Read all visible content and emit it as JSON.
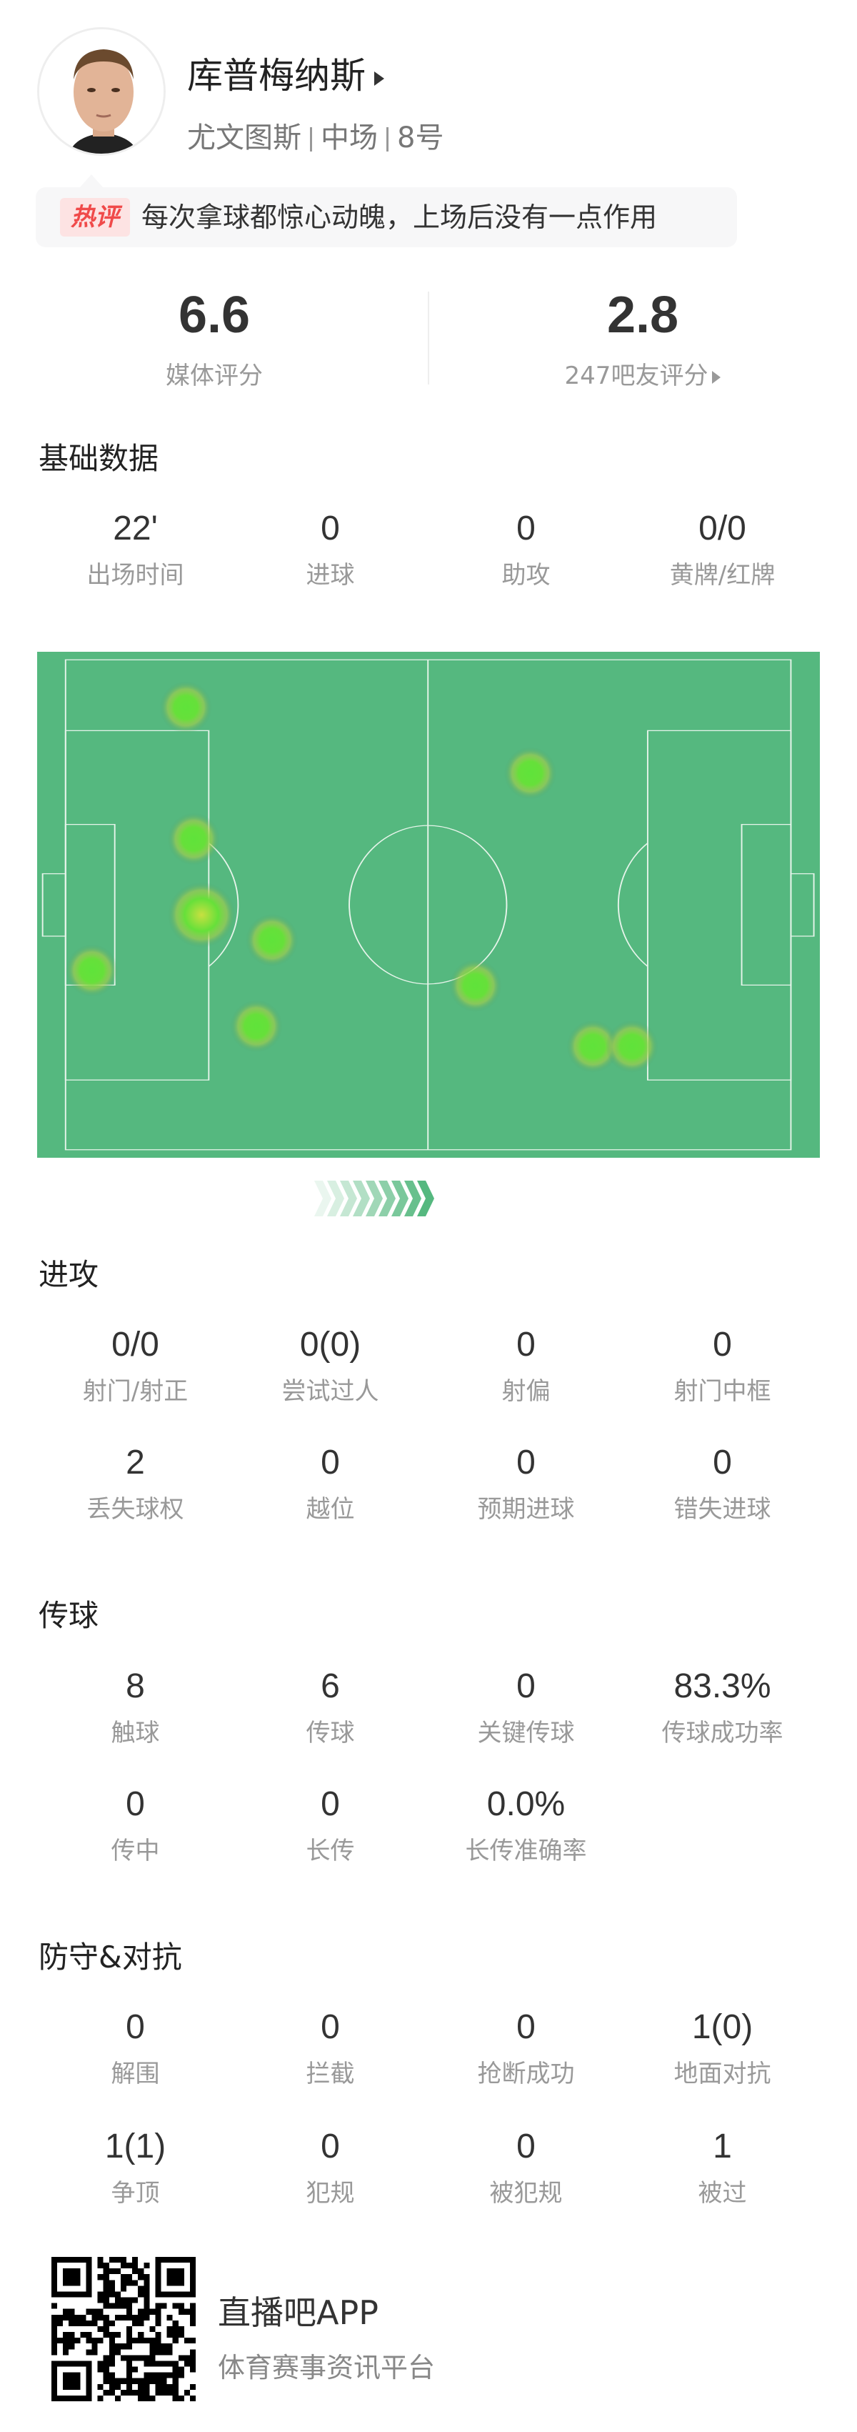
{
  "player": {
    "name": "库普梅纳斯",
    "team": "尤文图斯",
    "position": "中场",
    "number": "8号"
  },
  "hot_comment": {
    "badge": "热评",
    "text": "每次拿球都惊心动魄，上场后没有一点作用"
  },
  "ratings": {
    "media": {
      "value": "6.6",
      "label": "媒体评分"
    },
    "fans": {
      "value": "2.8",
      "label": "247吧友评分"
    }
  },
  "sections": {
    "basic": {
      "title": "基础数据",
      "stats": [
        {
          "value": "22'",
          "label": "出场时间"
        },
        {
          "value": "0",
          "label": "进球"
        },
        {
          "value": "0",
          "label": "助攻"
        },
        {
          "value": "0/0",
          "label": "黄牌/红牌"
        }
      ]
    },
    "attack": {
      "title": "进攻",
      "stats": [
        {
          "value": "0/0",
          "label": "射门/射正"
        },
        {
          "value": "0(0)",
          "label": "尝试过人"
        },
        {
          "value": "0",
          "label": "射偏"
        },
        {
          "value": "0",
          "label": "射门中框"
        },
        {
          "value": "2",
          "label": "丢失球权"
        },
        {
          "value": "0",
          "label": "越位"
        },
        {
          "value": "0",
          "label": "预期进球"
        },
        {
          "value": "0",
          "label": "错失进球"
        }
      ]
    },
    "passing": {
      "title": "传球",
      "stats": [
        {
          "value": "8",
          "label": "触球"
        },
        {
          "value": "6",
          "label": "传球"
        },
        {
          "value": "0",
          "label": "关键传球"
        },
        {
          "value": "83.3%",
          "label": "传球成功率"
        },
        {
          "value": "0",
          "label": "传中"
        },
        {
          "value": "0",
          "label": "长传"
        },
        {
          "value": "0.0%",
          "label": "长传准确率"
        }
      ]
    },
    "defense": {
      "title": "防守&对抗",
      "stats": [
        {
          "value": "0",
          "label": "解围"
        },
        {
          "value": "0",
          "label": "拦截"
        },
        {
          "value": "0",
          "label": "抢断成功"
        },
        {
          "value": "1(0)",
          "label": "地面对抗"
        },
        {
          "value": "1(1)",
          "label": "争顶"
        },
        {
          "value": "0",
          "label": "犯规"
        },
        {
          "value": "0",
          "label": "被犯规"
        },
        {
          "value": "1",
          "label": "被过"
        }
      ]
    }
  },
  "heatmap": {
    "pitch_color": "#55b87f",
    "hot_color": "#5fe33a",
    "attack_direction": "right",
    "touch_points": [
      {
        "x": 19,
        "y": 11,
        "intensity": 1
      },
      {
        "x": 63,
        "y": 24,
        "intensity": 1
      },
      {
        "x": 20,
        "y": 37,
        "intensity": 1
      },
      {
        "x": 21,
        "y": 52,
        "intensity": 2
      },
      {
        "x": 30,
        "y": 57,
        "intensity": 1
      },
      {
        "x": 7,
        "y": 63,
        "intensity": 1
      },
      {
        "x": 28,
        "y": 74,
        "intensity": 1
      },
      {
        "x": 56,
        "y": 66,
        "intensity": 1
      },
      {
        "x": 71,
        "y": 78,
        "intensity": 1
      },
      {
        "x": 76,
        "y": 78,
        "intensity": 1
      }
    ]
  },
  "footer": {
    "app_name": "直播吧APP",
    "tagline": "体育赛事资讯平台"
  }
}
